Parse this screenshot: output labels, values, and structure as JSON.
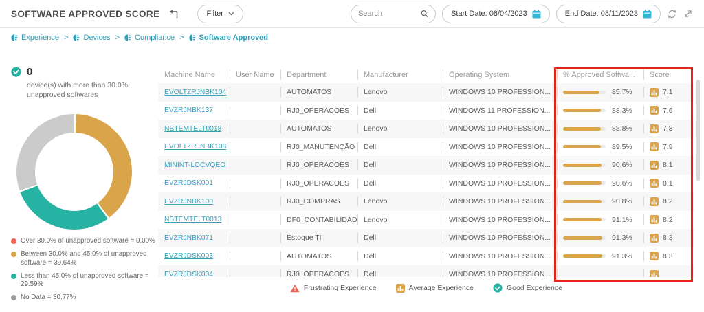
{
  "header": {
    "title": "SOFTWARE APPROVED SCORE",
    "filter_label": "Filter",
    "search_placeholder": "Search",
    "start_date_label": "Start Date: 08/04/2023",
    "end_date_label": "End Date: 08/11/2023"
  },
  "breadcrumb": {
    "items": [
      "Experience",
      "Devices",
      "Compliance",
      "Software Approved"
    ]
  },
  "summary": {
    "count": "0",
    "description": "device(s) with more than 30.0% unapproved softwares"
  },
  "chart_data": {
    "type": "pie",
    "donut": true,
    "title": "",
    "start_angle": "top",
    "direction": "clockwise",
    "legend_position": "bottom-left",
    "slices": [
      {
        "label": "Over 30.0% of unapproved software",
        "value": 0.0,
        "color": "#ee6352"
      },
      {
        "label": "Between 30.0% and 45.0% of unapproved software",
        "value": 39.64,
        "color": "#d9a44a"
      },
      {
        "label": "Less than 45.0% of unapproved software",
        "value": 29.59,
        "color": "#26b3a4"
      },
      {
        "label": "No Data",
        "value": 30.77,
        "color": "#cbcbcb"
      }
    ]
  },
  "legend": [
    {
      "label": "Over 30.0% of unapproved software",
      "value": "0.00%",
      "color": "#ee6352"
    },
    {
      "label": "Between 30.0% and 45.0% of unapproved software",
      "value": "39.64%",
      "color": "#d9a44a"
    },
    {
      "label": "Less than 45.0% of unapproved software",
      "value": "29.59%",
      "color": "#26b3a4"
    },
    {
      "label": "No Data",
      "value": "30.77%",
      "color": "#9e9e9e"
    }
  ],
  "table": {
    "columns": [
      "Machine Name",
      "User Name",
      "Department",
      "Manufacturer",
      "Operating System",
      "% Approved Softwa...",
      "Score"
    ],
    "rows": [
      {
        "machine": "EVOLTZRJNBK104",
        "user": "",
        "department": "AUTOMATOS",
        "manufacturer": "Lenovo",
        "os": "WINDOWS 10 PROFESSION...",
        "approved_pct": "85.7%",
        "score": "7.1"
      },
      {
        "machine": "EVZRJNBK137",
        "user": "",
        "department": "RJ0_OPERACOES",
        "manufacturer": "Dell",
        "os": "WINDOWS 11 PROFESSION...",
        "approved_pct": "88.3%",
        "score": "7.6"
      },
      {
        "machine": "NBTEMTELT0018",
        "user": "",
        "department": "AUTOMATOS",
        "manufacturer": "Lenovo",
        "os": "WINDOWS 10 PROFESSION...",
        "approved_pct": "88.8%",
        "score": "7.8"
      },
      {
        "machine": "EVOLTZRJNBK108",
        "user": "",
        "department": "RJ0_MANUTENÇÃO",
        "manufacturer": "Dell",
        "os": "WINDOWS 10 PROFESSION...",
        "approved_pct": "89.5%",
        "score": "7.9"
      },
      {
        "machine": "MININT-LOCVQEO",
        "user": "",
        "department": "RJ0_OPERACOES",
        "manufacturer": "Dell",
        "os": "WINDOWS 10 PROFESSION...",
        "approved_pct": "90.6%",
        "score": "8.1"
      },
      {
        "machine": "EVZRJDSK001",
        "user": "",
        "department": "RJ0_OPERACOES",
        "manufacturer": "Dell",
        "os": "WINDOWS 10 PROFESSION...",
        "approved_pct": "90.6%",
        "score": "8.1"
      },
      {
        "machine": "EVZRJNBK100",
        "user": "",
        "department": "RJ0_COMPRAS",
        "manufacturer": "Lenovo",
        "os": "WINDOWS 10 PROFESSION...",
        "approved_pct": "90.8%",
        "score": "8.2"
      },
      {
        "machine": "NBTEMTELT0013",
        "user": "",
        "department": "DF0_CONTABILIDADE",
        "manufacturer": "Lenovo",
        "os": "WINDOWS 10 PROFESSION...",
        "approved_pct": "91.1%",
        "score": "8.2"
      },
      {
        "machine": "EVZRJNBK071",
        "user": "",
        "department": "Estoque TI",
        "manufacturer": "Dell",
        "os": "WINDOWS 10 PROFESSION...",
        "approved_pct": "91.3%",
        "score": "8.3"
      },
      {
        "machine": "EVZRJDSK003",
        "user": "",
        "department": "AUTOMATOS",
        "manufacturer": "Dell",
        "os": "WINDOWS 10 PROFESSION...",
        "approved_pct": "91.3%",
        "score": "8.3"
      },
      {
        "machine": "EVZRJDSK004",
        "user": "",
        "department": "RJ0_OPERACOES",
        "manufacturer": "Dell",
        "os": "WINDOWS 10 PROFESSION...",
        "approved_pct": "",
        "score": ""
      }
    ]
  },
  "footer_legend": [
    {
      "label": "Frustrating Experience",
      "icon": "warning-triangle",
      "color": "#ee6352"
    },
    {
      "label": "Average Experience",
      "icon": "bar-chart",
      "color": "#d9a44a"
    },
    {
      "label": "Good Experience",
      "icon": "check-circle",
      "color": "#26b3a4"
    }
  ]
}
